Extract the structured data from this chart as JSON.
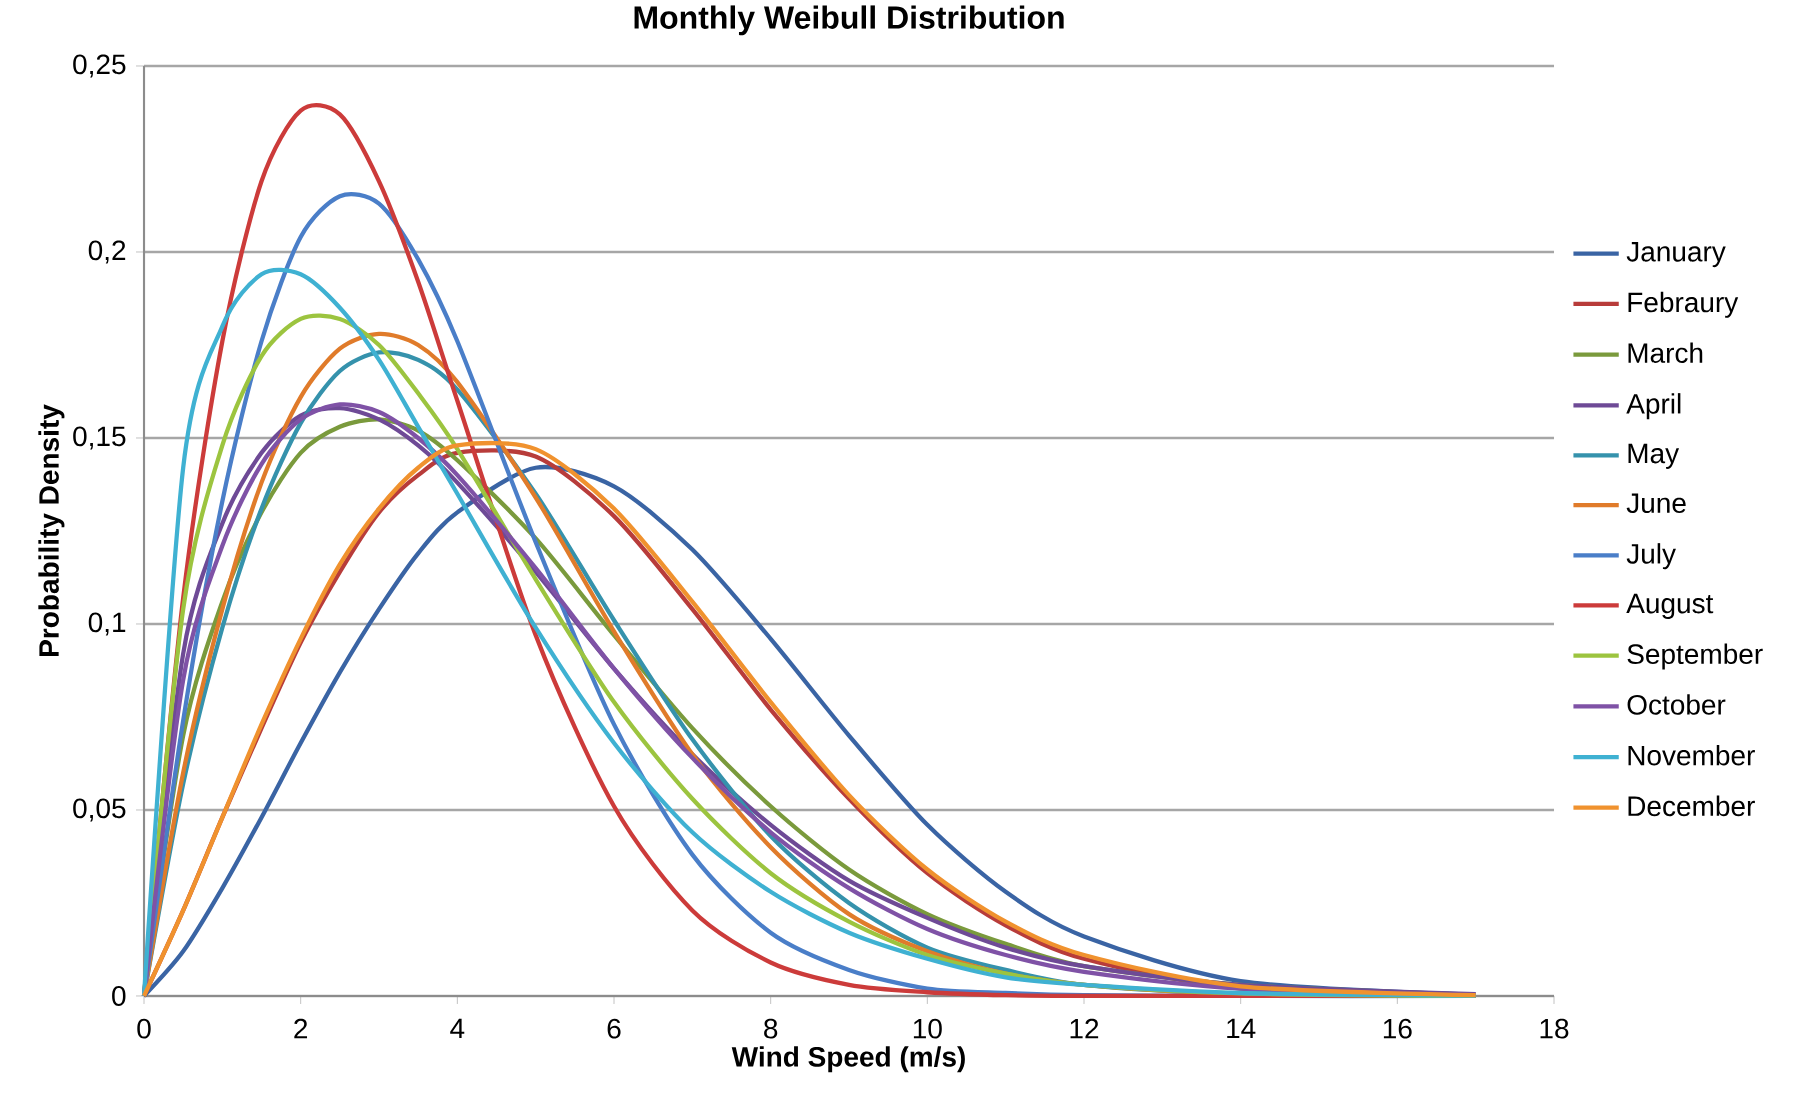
{
  "chart_data": {
    "type": "line",
    "title": "Monthly Weibull Distribution",
    "xlabel": "Wind Speed (m/s)",
    "ylabel": "Probability Density",
    "x": [
      0,
      0.5,
      1,
      1.5,
      2,
      2.5,
      3,
      3.5,
      4,
      5,
      6,
      7,
      8,
      9,
      10,
      11,
      12,
      14,
      17
    ],
    "xlim": [
      0,
      18
    ],
    "xticks": [
      0,
      2,
      4,
      6,
      8,
      10,
      12,
      14,
      16,
      18
    ],
    "ylim": [
      0,
      0.25
    ],
    "yticks": [
      0,
      {
        "value": 0.05,
        "label": "0,05"
      },
      {
        "value": 0.1,
        "label": "0,1"
      },
      {
        "value": 0.15,
        "label": "0,15"
      },
      {
        "value": 0.2,
        "label": "0,2"
      },
      {
        "value": 0.25,
        "label": "0,25"
      }
    ],
    "grid": "y",
    "legend": "right",
    "marker": "none",
    "line_style": "solid",
    "series": [
      {
        "name": "January",
        "color": "#3a64a4",
        "values": [
          0,
          0.012,
          0.029,
          0.048,
          0.068,
          0.087,
          0.104,
          0.119,
          0.13,
          0.142,
          0.137,
          0.12,
          0.096,
          0.07,
          0.046,
          0.028,
          0.016,
          0.004,
          0.0003
        ]
      },
      {
        "name": "Febraury",
        "color": "#b83c3a",
        "values": [
          0,
          0.023,
          0.048,
          0.072,
          0.095,
          0.114,
          0.13,
          0.14,
          0.146,
          0.145,
          0.129,
          0.104,
          0.077,
          0.053,
          0.033,
          0.019,
          0.01,
          0.002,
          0.0001
        ]
      },
      {
        "name": "March",
        "color": "#7a9a3c",
        "values": [
          0,
          0.07,
          0.106,
          0.13,
          0.146,
          0.153,
          0.155,
          0.152,
          0.144,
          0.123,
          0.097,
          0.072,
          0.051,
          0.034,
          0.022,
          0.014,
          0.008,
          0.003,
          0.0003
        ]
      },
      {
        "name": "April",
        "color": "#6e4a96",
        "values": [
          0,
          0.092,
          0.127,
          0.146,
          0.156,
          0.158,
          0.155,
          0.148,
          0.138,
          0.114,
          0.088,
          0.065,
          0.046,
          0.031,
          0.021,
          0.013,
          0.008,
          0.003,
          0.0005
        ]
      },
      {
        "name": "May",
        "color": "#3592ac",
        "values": [
          0,
          0.057,
          0.099,
          0.131,
          0.154,
          0.168,
          0.173,
          0.171,
          0.163,
          0.135,
          0.101,
          0.069,
          0.043,
          0.025,
          0.013,
          0.007,
          0.003,
          0.0006,
          0
        ]
      },
      {
        "name": "June",
        "color": "#e07b2a",
        "values": [
          0,
          0.06,
          0.104,
          0.138,
          0.161,
          0.174,
          0.178,
          0.175,
          0.165,
          0.134,
          0.098,
          0.065,
          0.04,
          0.022,
          0.012,
          0.006,
          0.003,
          0.0005,
          0
        ]
      },
      {
        "name": "July",
        "color": "#4a7ec8",
        "values": [
          0,
          0.074,
          0.133,
          0.176,
          0.204,
          0.215,
          0.213,
          0.198,
          0.176,
          0.122,
          0.073,
          0.038,
          0.017,
          0.007,
          0.002,
          0.0008,
          0.0002,
          0,
          0
        ]
      },
      {
        "name": "August",
        "color": "#cc3b3a",
        "values": [
          0,
          0.107,
          0.176,
          0.219,
          0.238,
          0.237,
          0.219,
          0.192,
          0.16,
          0.097,
          0.051,
          0.023,
          0.009,
          0.003,
          0.001,
          0.0002,
          0,
          0,
          0
        ]
      },
      {
        "name": "September",
        "color": "#9cc43f",
        "values": [
          0,
          0.104,
          0.148,
          0.172,
          0.182,
          0.182,
          0.175,
          0.162,
          0.147,
          0.112,
          0.079,
          0.053,
          0.033,
          0.02,
          0.011,
          0.006,
          0.003,
          0.0007,
          0
        ]
      },
      {
        "name": "October",
        "color": "#7f52a6",
        "values": [
          0,
          0.085,
          0.121,
          0.143,
          0.155,
          0.159,
          0.157,
          0.15,
          0.14,
          0.115,
          0.088,
          0.064,
          0.044,
          0.029,
          0.018,
          0.011,
          0.0065,
          0.002,
          0.0003
        ]
      },
      {
        "name": "November",
        "color": "#3fb1d2",
        "values": [
          0,
          0.142,
          0.18,
          0.194,
          0.194,
          0.185,
          0.171,
          0.153,
          0.135,
          0.099,
          0.068,
          0.044,
          0.028,
          0.017,
          0.01,
          0.005,
          0.003,
          0.0008,
          0.0001
        ]
      },
      {
        "name": "December",
        "color": "#f0922e",
        "values": [
          0,
          0.023,
          0.048,
          0.073,
          0.096,
          0.116,
          0.131,
          0.142,
          0.148,
          0.147,
          0.131,
          0.106,
          0.079,
          0.054,
          0.034,
          0.02,
          0.011,
          0.0026,
          0.0002
        ]
      }
    ]
  }
}
